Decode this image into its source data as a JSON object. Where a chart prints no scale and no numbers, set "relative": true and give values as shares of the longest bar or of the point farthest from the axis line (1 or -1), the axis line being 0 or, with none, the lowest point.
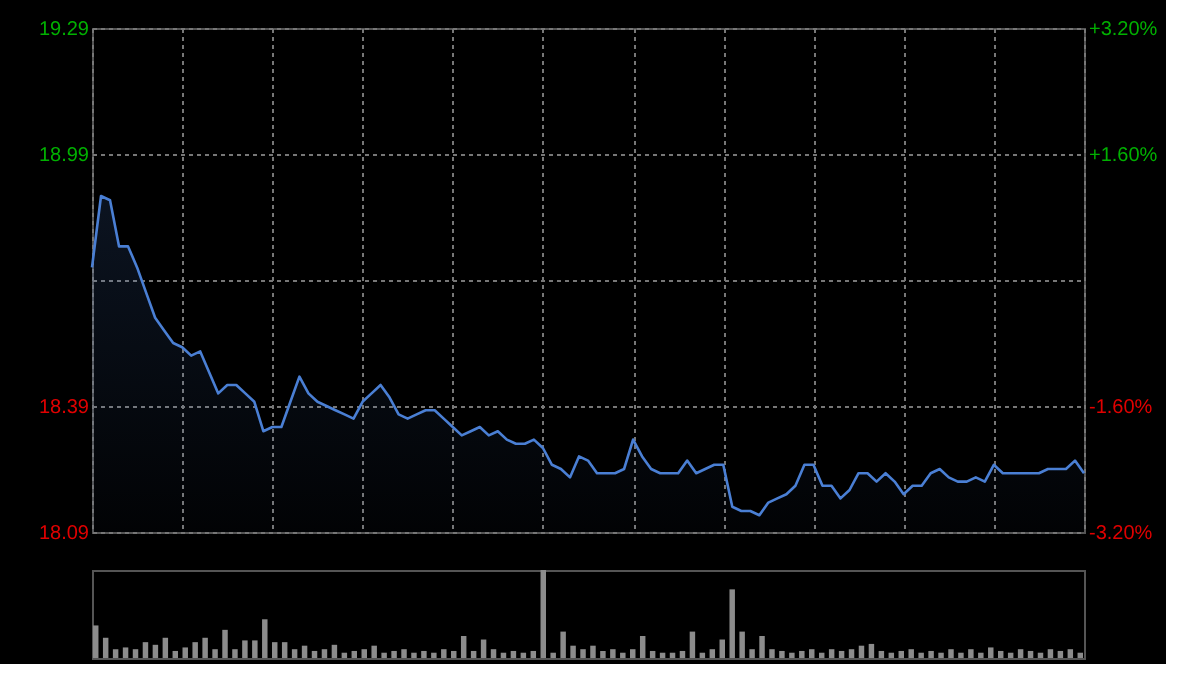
{
  "chart_data": [
    {
      "type": "area",
      "color": "#4a7fd4",
      "grid": true,
      "tick_labels": "y",
      "legend": false,
      "categories": [
        null,
        null,
        null,
        null,
        null,
        null,
        null,
        null,
        null,
        null,
        null,
        null,
        null,
        null,
        null,
        null,
        null,
        null,
        null,
        null,
        null,
        null,
        null,
        null,
        null,
        null,
        null,
        null,
        null,
        null,
        null,
        null,
        null,
        null,
        null,
        null,
        null,
        null,
        null,
        null,
        null,
        null,
        null,
        null,
        null,
        null,
        null,
        null,
        null,
        null,
        null,
        null,
        null,
        null,
        null,
        null,
        null,
        null,
        null,
        null,
        null,
        null,
        null,
        null,
        null,
        null,
        null,
        null,
        null,
        null,
        null,
        null,
        null,
        null,
        null,
        null,
        null,
        null,
        null,
        null,
        null,
        null,
        null,
        null,
        null,
        null,
        null,
        null,
        null,
        null,
        null,
        null,
        null,
        null,
        null,
        null,
        null,
        null,
        null,
        null,
        null,
        null,
        null,
        null,
        null,
        null,
        null,
        null,
        null,
        null,
        null
      ],
      "values": [
        18.72,
        18.89,
        18.88,
        18.77,
        18.77,
        18.72,
        18.66,
        18.6,
        18.57,
        18.54,
        18.53,
        18.51,
        18.52,
        18.47,
        18.42,
        18.44,
        18.44,
        18.42,
        18.4,
        18.33,
        18.34,
        18.34,
        18.4,
        18.46,
        18.42,
        18.4,
        18.39,
        18.38,
        18.37,
        18.36,
        18.4,
        18.42,
        18.44,
        18.41,
        18.37,
        18.36,
        18.37,
        18.38,
        18.38,
        18.36,
        18.34,
        18.32,
        18.33,
        18.34,
        18.32,
        18.33,
        18.31,
        18.3,
        18.3,
        18.31,
        18.29,
        18.25,
        18.24,
        18.22,
        18.27,
        18.26,
        18.23,
        18.23,
        18.23,
        18.24,
        18.31,
        18.27,
        18.24,
        18.23,
        18.23,
        18.23,
        18.26,
        18.23,
        18.24,
        18.25,
        18.25,
        18.15,
        18.14,
        18.14,
        18.13,
        18.16,
        18.17,
        18.18,
        18.2,
        18.25,
        18.25,
        18.2,
        18.2,
        18.17,
        18.19,
        18.23,
        18.23,
        18.21,
        18.23,
        18.21,
        18.18,
        18.2,
        18.2,
        18.23,
        18.24,
        18.22,
        18.21,
        18.21,
        18.22,
        18.21,
        18.25,
        18.23,
        18.23,
        18.23,
        18.23,
        18.23,
        18.24,
        18.24,
        18.24,
        18.26,
        18.23
      ],
      "ylim": [
        18.09,
        19.29
      ],
      "yticks": [
        19.29,
        18.99,
        {
          "value": 18.69,
          "label": null
        },
        18.39,
        18.09
      ],
      "y2lim": [
        -3.2,
        3.2
      ],
      "y2ticks": [
        {
          "value": 3.2,
          "label": "+3.20%"
        },
        {
          "value": 1.6,
          "label": "+1.60%"
        },
        {
          "value": 0,
          "label": null
        },
        {
          "value": -1.6,
          "label": "-1.60%"
        },
        {
          "value": -3.2,
          "label": "-3.20%"
        }
      ]
    },
    {
      "type": "bar",
      "relative": true,
      "color": "#8c8c8c",
      "categories": [
        null,
        null,
        null,
        null,
        null,
        null,
        null,
        null,
        null,
        null,
        null,
        null,
        null,
        null,
        null,
        null,
        null,
        null,
        null,
        null,
        null,
        null,
        null,
        null,
        null,
        null,
        null,
        null,
        null,
        null,
        null,
        null,
        null,
        null,
        null,
        null,
        null,
        null,
        null,
        null,
        null,
        null,
        null,
        null,
        null,
        null,
        null,
        null,
        null,
        null,
        null,
        null,
        null,
        null,
        null,
        null,
        null,
        null,
        null,
        null,
        null,
        null,
        null,
        null,
        null,
        null,
        null,
        null,
        null,
        null,
        null,
        null,
        null,
        null,
        null,
        null,
        null,
        null,
        null,
        null,
        null,
        null,
        null,
        null,
        null,
        null,
        null,
        null,
        null,
        null,
        null,
        null,
        null,
        null,
        null,
        null,
        null,
        null,
        null,
        null
      ],
      "values": [
        0.37,
        0.23,
        0.1,
        0.12,
        0.1,
        0.18,
        0.15,
        0.23,
        0.08,
        0.12,
        0.18,
        0.23,
        0.1,
        0.32,
        0.1,
        0.2,
        0.2,
        0.44,
        0.18,
        0.18,
        0.1,
        0.14,
        0.08,
        0.1,
        0.15,
        0.06,
        0.08,
        0.1,
        0.14,
        0.06,
        0.08,
        0.1,
        0.06,
        0.08,
        0.06,
        0.1,
        0.08,
        0.25,
        0.08,
        0.21,
        0.1,
        0.06,
        0.08,
        0.06,
        0.08,
        1.0,
        0.06,
        0.3,
        0.14,
        0.1,
        0.14,
        0.08,
        0.1,
        0.06,
        0.1,
        0.25,
        0.08,
        0.06,
        0.06,
        0.08,
        0.3,
        0.06,
        0.1,
        0.21,
        0.78,
        0.3,
        0.1,
        0.25,
        0.1,
        0.08,
        0.06,
        0.08,
        0.1,
        0.06,
        0.1,
        0.08,
        0.1,
        0.14,
        0.16,
        0.08,
        0.06,
        0.08,
        0.1,
        0.06,
        0.08,
        0.06,
        0.1,
        0.06,
        0.1,
        0.06,
        0.12,
        0.08,
        0.06,
        0.1,
        0.08,
        0.06,
        0.1,
        0.08,
        0.1,
        0.06
      ]
    }
  ]
}
